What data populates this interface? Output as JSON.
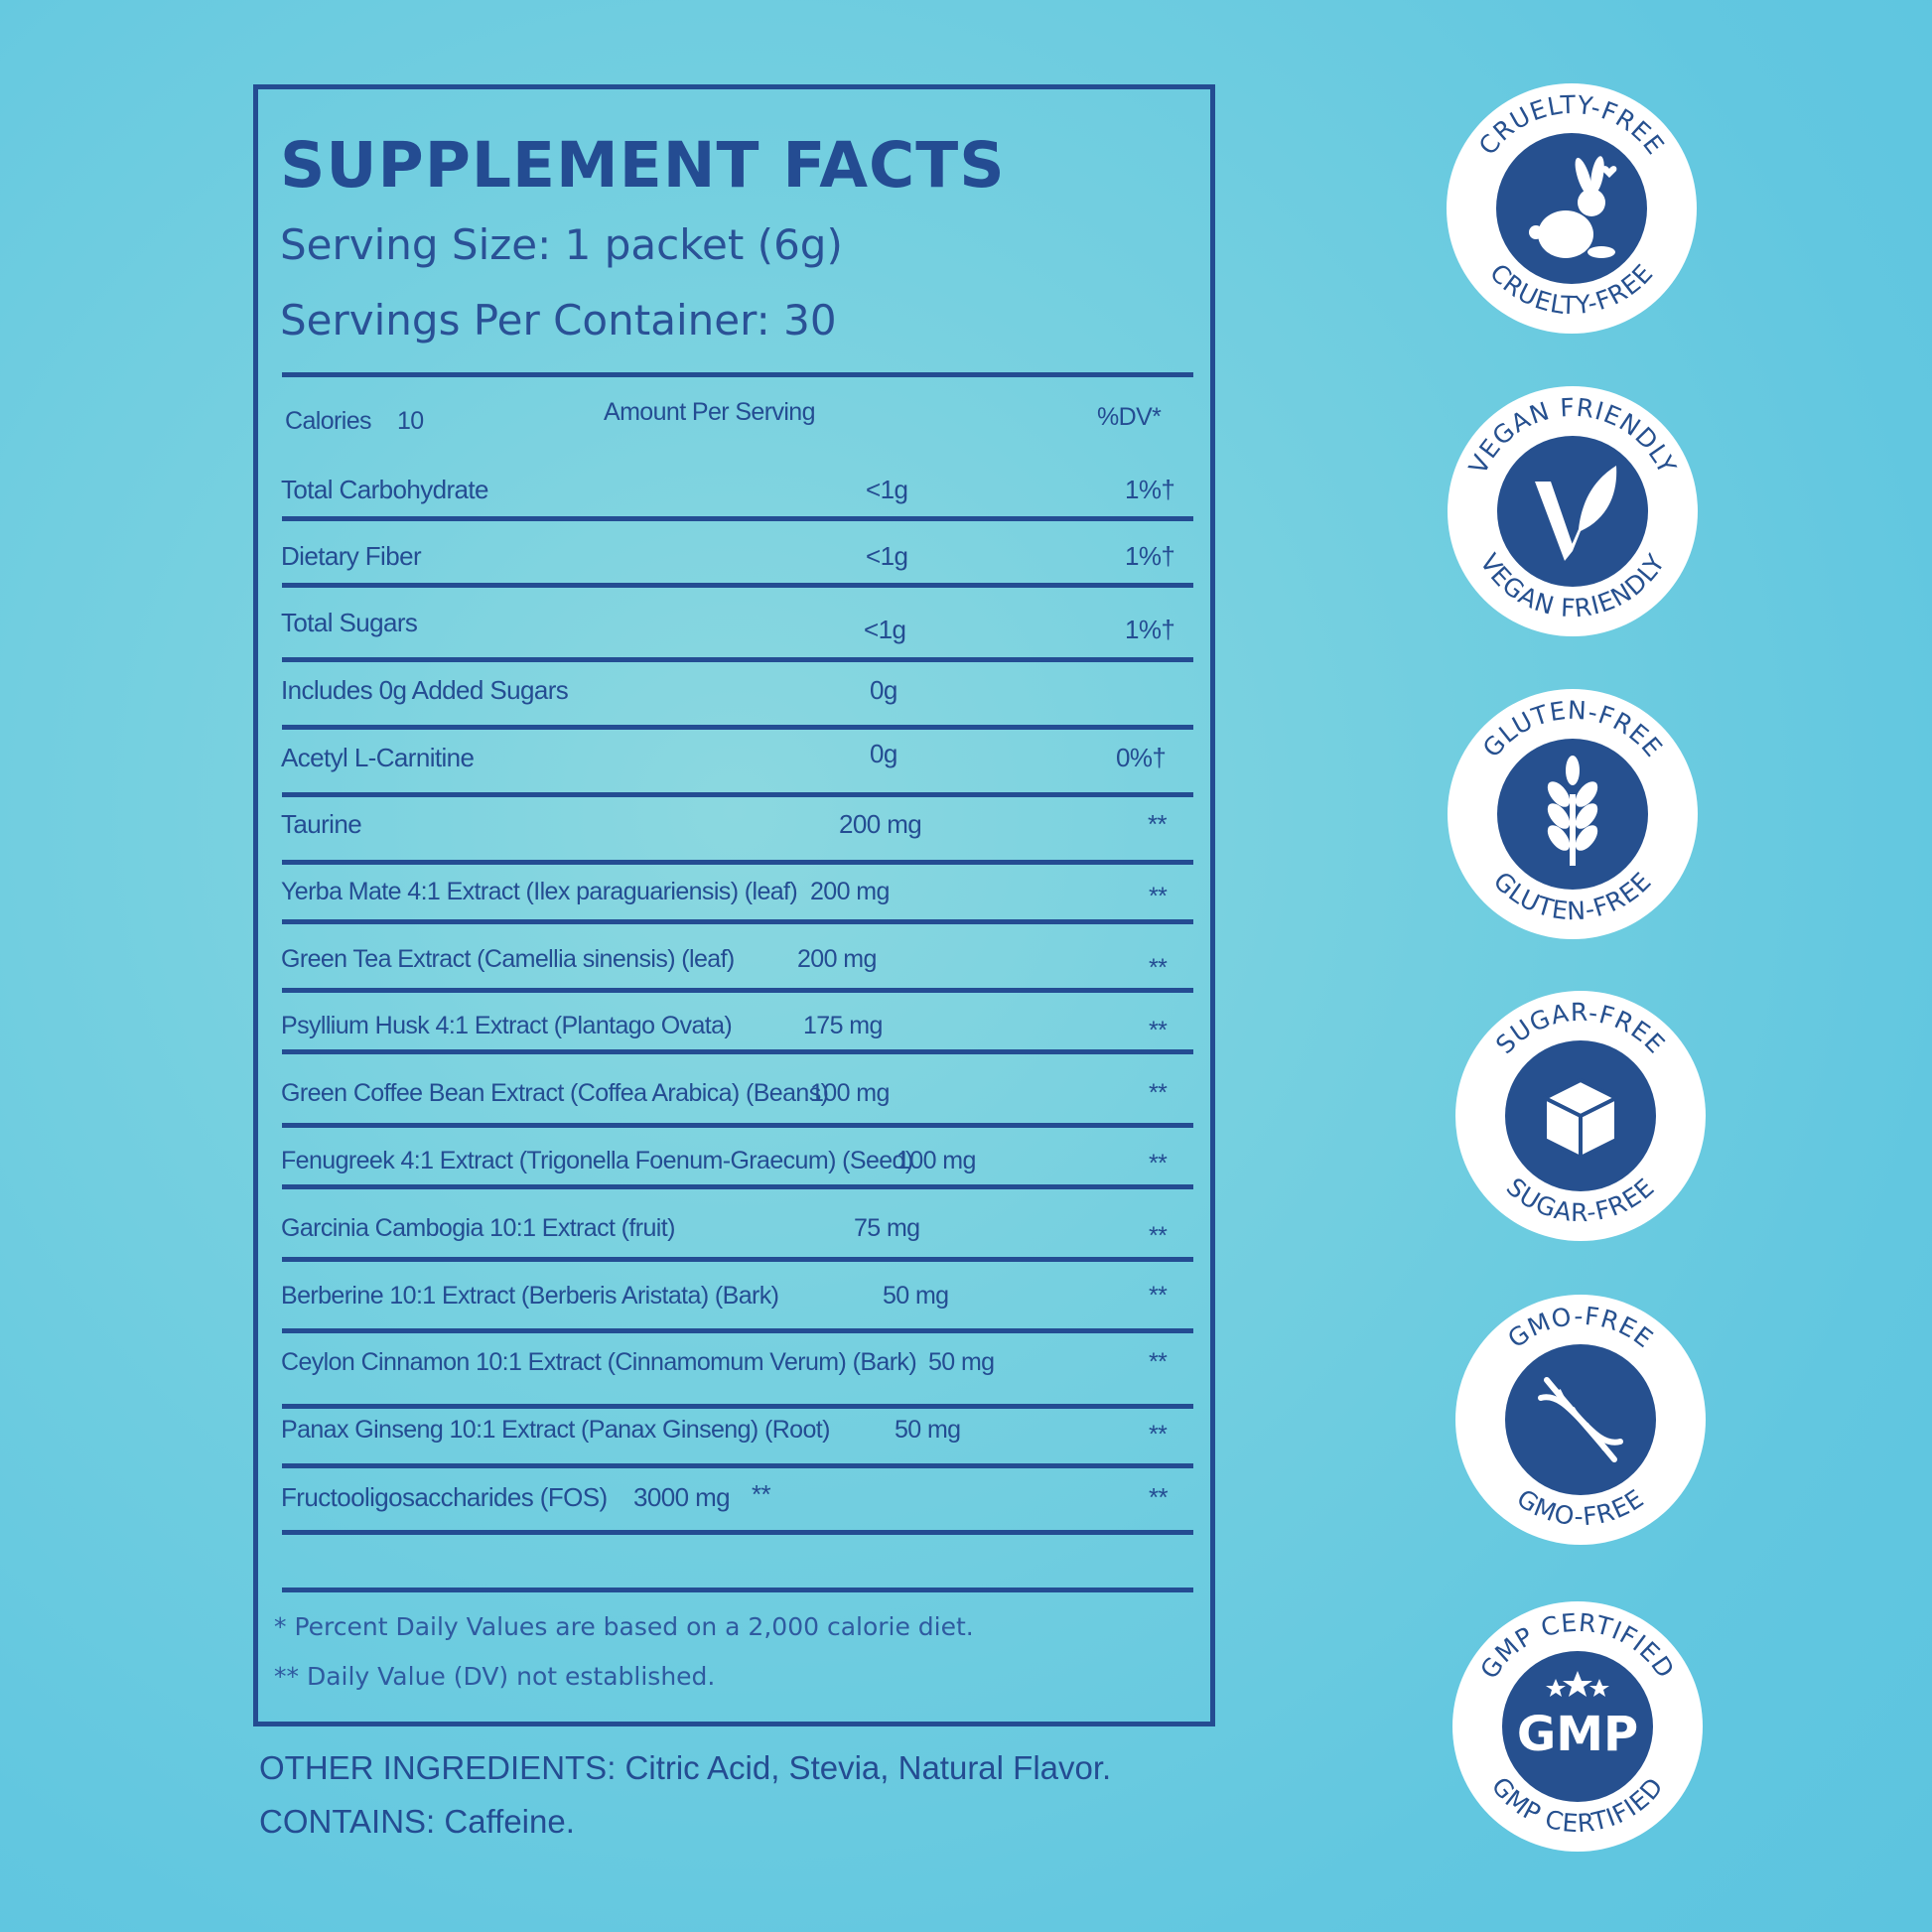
{
  "label": {
    "title": "SUPPLEMENT FACTS",
    "serving_size": "Serving Size: 1 packet (6g)",
    "servings_per_container": "Servings Per Container: 30",
    "header": {
      "calories_label": "Calories",
      "calories_value": "10",
      "amount_label": "Amount Per Serving",
      "dv_label": "%DV*"
    },
    "rows": [
      {
        "name": "Total Carbohydrate",
        "amount": "<1g",
        "dv": "1%†"
      },
      {
        "name": "Dietary Fiber",
        "amount": "<1g",
        "dv": "1%†"
      },
      {
        "name": "Total Sugars",
        "amount": "<1g",
        "dv": "1%†"
      },
      {
        "name": "Includes 0g Added Sugars",
        "amount": "0g",
        "dv": ""
      },
      {
        "name": "Acetyl L-Carnitine",
        "amount": "0g",
        "dv": "0%†"
      },
      {
        "name": "Taurine",
        "amount": "200 mg",
        "dv": "**"
      },
      {
        "name": "Yerba Mate 4:1 Extract (Ilex paraguariensis) (leaf)",
        "amount": "200 mg",
        "dv": "**"
      },
      {
        "name": "Green Tea Extract (Camellia sinensis) (leaf)",
        "amount": "200 mg",
        "dv": "**"
      },
      {
        "name": "Psyllium Husk 4:1 Extract (Plantago Ovata)",
        "amount": "175 mg",
        "dv": "**"
      },
      {
        "name": "Green Coffee Bean Extract (Coffea Arabica) (Beans)",
        "amount": "100 mg",
        "dv": "**"
      },
      {
        "name": "Fenugreek 4:1 Extract (Trigonella Foenum-Graecum) (Seed)",
        "amount": "100 mg",
        "dv": "**"
      },
      {
        "name": "Garcinia Cambogia 10:1 Extract (fruit)",
        "amount": "75 mg",
        "dv": "**"
      },
      {
        "name": "Berberine 10:1 Extract (Berberis Aristata) (Bark)",
        "amount": "50 mg",
        "dv": "**"
      },
      {
        "name": "Ceylon Cinnamon 10:1 Extract (Cinnamomum Verum) (Bark)",
        "amount": "50 mg",
        "dv": "**"
      },
      {
        "name": "Panax Ginseng 10:1 Extract (Panax Ginseng) (Root)",
        "amount": "50 mg",
        "dv": "**"
      },
      {
        "name": "Fructooligosaccharides (FOS)",
        "amount": "3000 mg",
        "extra": "**",
        "dv": "**"
      }
    ],
    "footnote_1": "* Percent Daily Values are based on a 2,000 calorie diet.",
    "footnote_2": "** Daily Value (DV) not established."
  },
  "other_ingredients": "OTHER INGREDIENTS: Citric Acid, Stevia, Natural Flavor.",
  "contains": "CONTAINS: Caffeine.",
  "badges": [
    {
      "top_text": "CRUELTY-FREE",
      "bottom_text": "CRUELTY-FREE",
      "icon": "rabbit-icon"
    },
    {
      "top_text": "VEGAN FRIENDLY",
      "bottom_text": "VEGAN FRIENDLY",
      "icon": "vegan-leaf-icon"
    },
    {
      "top_text": "GLUTEN-FREE",
      "bottom_text": "GLUTEN-FREE",
      "icon": "wheat-icon"
    },
    {
      "top_text": "SUGAR-FREE",
      "bottom_text": "SUGAR-FREE",
      "icon": "sugar-cube-icon"
    },
    {
      "top_text": "GMO-FREE",
      "bottom_text": "GMO-FREE",
      "icon": "dna-icon"
    },
    {
      "top_text": "GMP CERTIFIED",
      "bottom_text": "GMP CERTIFIED",
      "icon": "gmp-icon",
      "center_text": "GMP"
    }
  ],
  "colors": {
    "navy": "#244c92",
    "badge_navy": "#26508f",
    "background": "#6ccde0"
  }
}
